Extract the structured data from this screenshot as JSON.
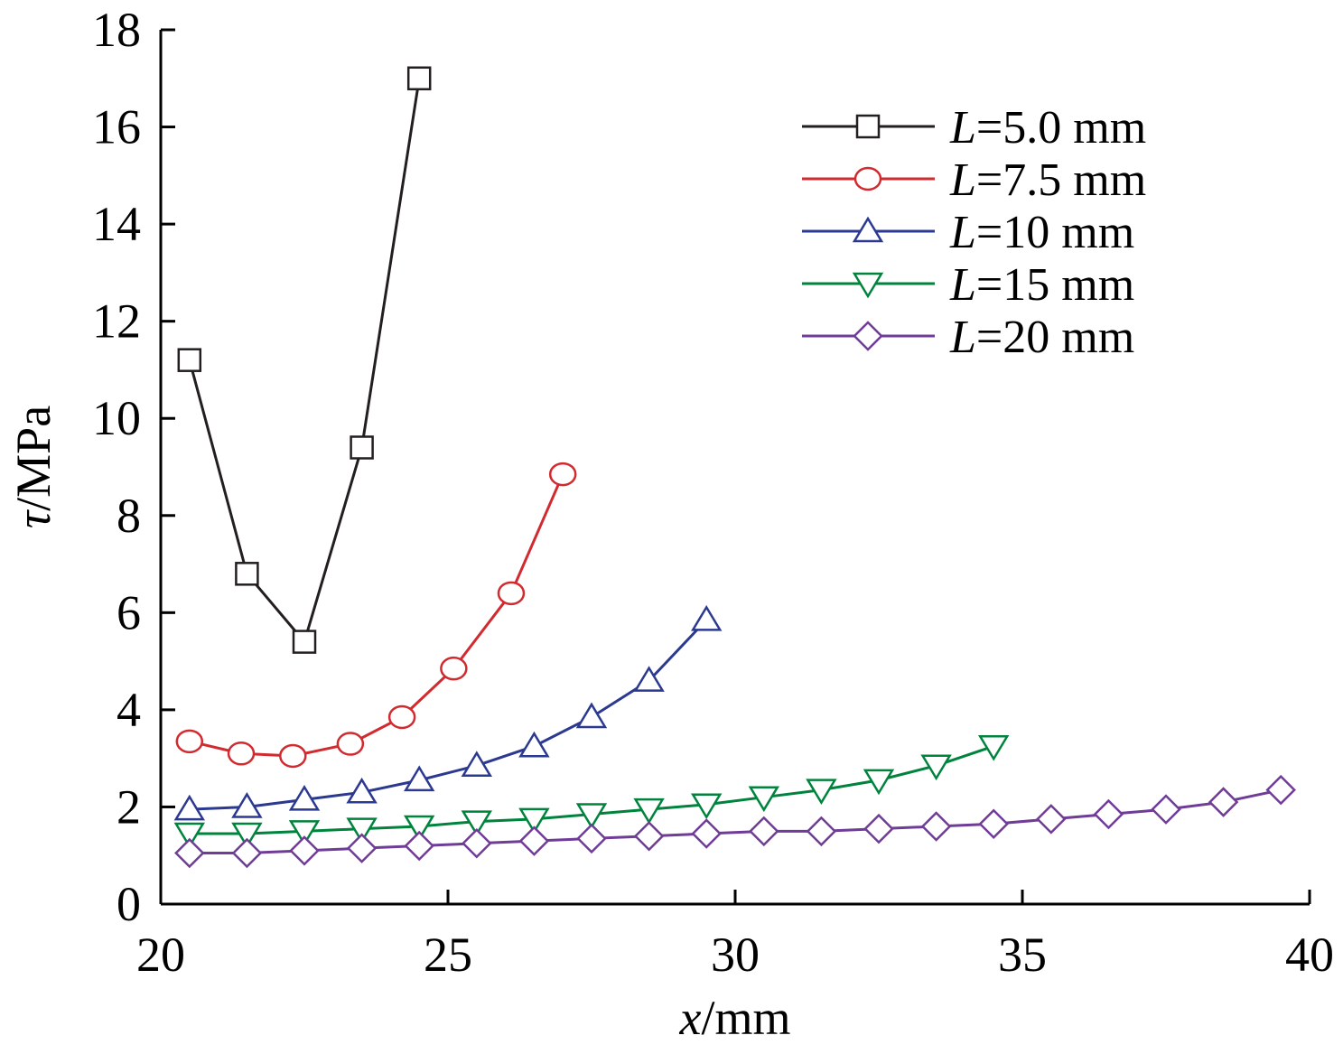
{
  "chart_data": {
    "type": "line",
    "xlabel": {
      "var": "x",
      "unit": "/mm"
    },
    "ylabel": {
      "var": "τ",
      "unit": "/MPa"
    },
    "xlim": [
      20,
      40
    ],
    "ylim": [
      0,
      18
    ],
    "xticks": [
      20,
      25,
      30,
      35,
      40
    ],
    "yticks": [
      0,
      2,
      4,
      6,
      8,
      10,
      12,
      14,
      16,
      18
    ],
    "legend_position": "top-right",
    "grid": false,
    "series": [
      {
        "name": "L=5.0 mm",
        "name_var": "L",
        "name_rest": "=5.0 mm",
        "color": "#231f20",
        "marker": "square",
        "x": [
          20.5,
          21.5,
          22.5,
          23.5,
          24.5
        ],
        "y": [
          11.2,
          6.8,
          5.4,
          9.4,
          17.0
        ]
      },
      {
        "name": "L=7.5 mm",
        "name_var": "L",
        "name_rest": "=7.5 mm",
        "color": "#d12a2f",
        "marker": "circle",
        "x": [
          20.5,
          21.4,
          22.3,
          23.3,
          24.2,
          25.1,
          26.1,
          27.0
        ],
        "y": [
          3.35,
          3.1,
          3.05,
          3.3,
          3.85,
          4.85,
          6.4,
          8.85
        ]
      },
      {
        "name": "L=10 mm",
        "name_var": "L",
        "name_rest": "=10 mm",
        "color": "#2b3990",
        "marker": "triangle-up",
        "x": [
          20.5,
          21.5,
          22.5,
          23.5,
          24.5,
          25.5,
          26.5,
          27.5,
          28.5,
          29.5
        ],
        "y": [
          1.95,
          2.0,
          2.15,
          2.3,
          2.55,
          2.85,
          3.25,
          3.85,
          4.6,
          5.85
        ]
      },
      {
        "name": "L=15 mm",
        "name_var": "L",
        "name_rest": "=15 mm",
        "color": "#00843d",
        "marker": "triangle-down",
        "x": [
          20.5,
          21.5,
          22.5,
          23.5,
          24.5,
          25.5,
          26.5,
          27.5,
          28.5,
          29.5,
          30.5,
          31.5,
          32.5,
          33.5,
          34.5
        ],
        "y": [
          1.45,
          1.45,
          1.5,
          1.55,
          1.6,
          1.7,
          1.75,
          1.85,
          1.95,
          2.05,
          2.2,
          2.35,
          2.55,
          2.85,
          3.25
        ]
      },
      {
        "name": "L=20 mm",
        "name_var": "L",
        "name_rest": "=20 mm",
        "color": "#6f3c97",
        "marker": "diamond",
        "x": [
          20.5,
          21.5,
          22.5,
          23.5,
          24.5,
          25.5,
          26.5,
          27.5,
          28.5,
          29.5,
          30.5,
          31.5,
          32.5,
          33.5,
          34.5,
          35.5,
          36.5,
          37.5,
          38.5,
          39.5
        ],
        "y": [
          1.05,
          1.05,
          1.1,
          1.15,
          1.2,
          1.25,
          1.3,
          1.35,
          1.4,
          1.45,
          1.5,
          1.5,
          1.55,
          1.6,
          1.65,
          1.75,
          1.85,
          1.95,
          2.1,
          2.35
        ]
      }
    ]
  }
}
